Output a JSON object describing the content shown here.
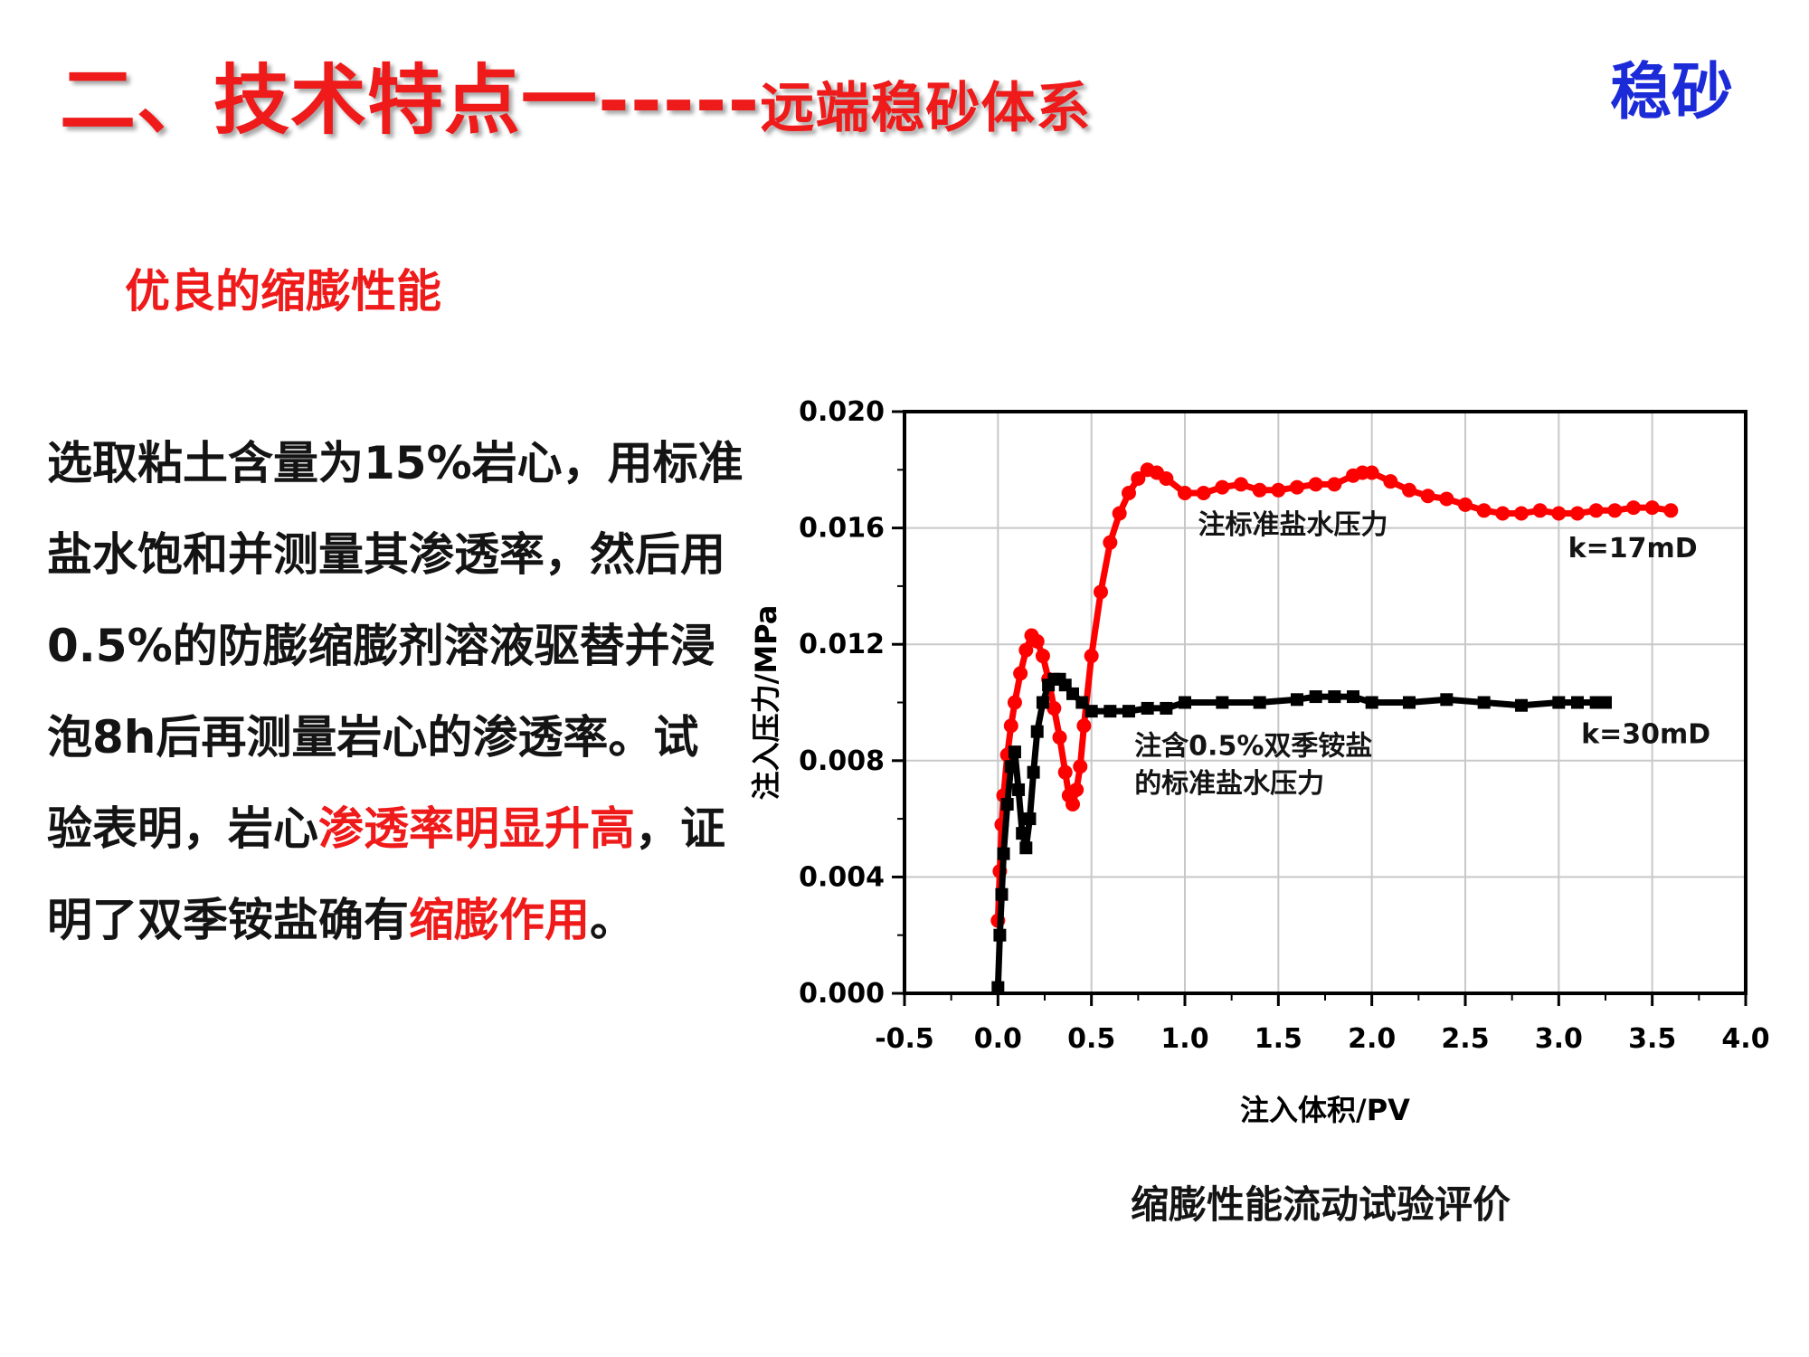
{
  "slide": {
    "title": "二、技术特点一-----",
    "title_sub": "远端稳砂体系",
    "tag": "稳砂",
    "subheading": "优良的缩膨性能",
    "paragraph": {
      "p1": "选取粘土含量为15%岩心，用标准盐水饱和并测量其渗透率，然后用0.5%的防膨缩膨剂溶液驱替并浸泡8h后再测量岩心的渗透率。试验表明，岩心",
      "hl1": "渗透率明显升高",
      "p2": "，证明了双季铵盐确有",
      "hl2": "缩膨作用",
      "p3": "。"
    },
    "caption": "缩膨性能流动试验评价"
  },
  "colors": {
    "title_red": "#ef1a1a",
    "tag_blue": "#1c2bd8",
    "series_red": "#ff0000",
    "series_black": "#000000"
  },
  "chart_data": {
    "type": "scatter",
    "xlabel": "注入体积/PV",
    "ylabel": "注入压力/MPa",
    "xlim": [
      -0.5,
      4.0
    ],
    "ylim": [
      0.0,
      0.02
    ],
    "xticks": [
      "-0.5",
      "0.0",
      "0.5",
      "1.0",
      "1.5",
      "2.0",
      "2.5",
      "3.0",
      "3.5",
      "4.0"
    ],
    "yticks": [
      "0.000",
      "0.004",
      "0.008",
      "0.012",
      "0.016",
      "0.020"
    ],
    "grid": true,
    "series": [
      {
        "name": "注标准盐水压力",
        "label": "k=17mD",
        "color": "#ff0000",
        "marker": "circle",
        "x": [
          0.0,
          0.01,
          0.02,
          0.03,
          0.05,
          0.07,
          0.09,
          0.12,
          0.15,
          0.18,
          0.21,
          0.24,
          0.27,
          0.3,
          0.33,
          0.36,
          0.38,
          0.4,
          0.42,
          0.44,
          0.46,
          0.5,
          0.55,
          0.6,
          0.65,
          0.7,
          0.75,
          0.8,
          0.85,
          0.9,
          1.0,
          1.1,
          1.2,
          1.3,
          1.4,
          1.5,
          1.6,
          1.7,
          1.8,
          1.9,
          1.95,
          2.0,
          2.1,
          2.2,
          2.3,
          2.4,
          2.5,
          2.6,
          2.7,
          2.8,
          2.9,
          3.0,
          3.1,
          3.2,
          3.3,
          3.4,
          3.5,
          3.6
        ],
        "y": [
          0.0025,
          0.0042,
          0.0058,
          0.0068,
          0.0082,
          0.0092,
          0.01,
          0.011,
          0.0118,
          0.0123,
          0.0121,
          0.0116,
          0.0108,
          0.0098,
          0.0088,
          0.0076,
          0.0068,
          0.0065,
          0.007,
          0.0078,
          0.0092,
          0.0116,
          0.0138,
          0.0155,
          0.0165,
          0.0172,
          0.0177,
          0.018,
          0.0179,
          0.0177,
          0.0172,
          0.0172,
          0.0174,
          0.0175,
          0.0173,
          0.0173,
          0.0174,
          0.0175,
          0.0175,
          0.0178,
          0.0179,
          0.0179,
          0.0176,
          0.0173,
          0.0171,
          0.017,
          0.0168,
          0.0166,
          0.0165,
          0.0165,
          0.0166,
          0.0165,
          0.0165,
          0.0166,
          0.0166,
          0.0167,
          0.0167,
          0.0166
        ]
      },
      {
        "name": "注含0.5%双季铵盐的标准盐水压力",
        "label": "k=30mD",
        "color": "#000000",
        "marker": "square",
        "x": [
          0.0,
          0.01,
          0.02,
          0.03,
          0.05,
          0.07,
          0.09,
          0.11,
          0.13,
          0.15,
          0.17,
          0.19,
          0.21,
          0.24,
          0.27,
          0.3,
          0.33,
          0.36,
          0.4,
          0.45,
          0.5,
          0.6,
          0.7,
          0.8,
          0.9,
          1.0,
          1.2,
          1.4,
          1.6,
          1.7,
          1.8,
          1.9,
          2.0,
          2.2,
          2.4,
          2.6,
          2.8,
          3.0,
          3.1,
          3.2,
          3.25
        ],
        "y": [
          0.0002,
          0.002,
          0.0034,
          0.0048,
          0.0065,
          0.0078,
          0.0083,
          0.007,
          0.0055,
          0.005,
          0.006,
          0.0076,
          0.009,
          0.01,
          0.0106,
          0.0108,
          0.0108,
          0.0106,
          0.0103,
          0.01,
          0.0097,
          0.0097,
          0.0097,
          0.0098,
          0.0098,
          0.01,
          0.01,
          0.01,
          0.0101,
          0.0102,
          0.0102,
          0.0102,
          0.01,
          0.01,
          0.0101,
          0.01,
          0.0099,
          0.01,
          0.01,
          0.01,
          0.01
        ]
      }
    ],
    "annotations": [
      {
        "text": "注标准盐水压力",
        "x": 1.07,
        "y": 0.0158
      },
      {
        "text": "k=17mD",
        "x": 3.05,
        "y": 0.015
      },
      {
        "text": "注含0.5%双季铵盐",
        "x": 0.73,
        "y": 0.0082
      },
      {
        "text": "的标准盐水压力",
        "x": 0.73,
        "y": 0.0069
      },
      {
        "text": "k=30mD",
        "x": 3.12,
        "y": 0.0086
      }
    ]
  }
}
